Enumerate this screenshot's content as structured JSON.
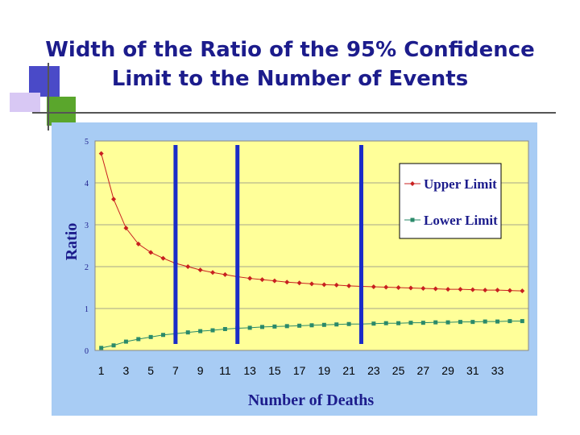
{
  "slide": {
    "title_line1": "Width of the Ratio of the 95% Confidence",
    "title_line2": "Limit to the Number of Events",
    "colors": {
      "title": "#1c1c8c",
      "deco_blue": "#4a4ac8",
      "deco_green": "#5aa62c",
      "deco_lavender": "#d6c6f2",
      "rule": "#555555"
    }
  },
  "chart_data": {
    "type": "line",
    "title": "",
    "xlabel": "Number of Deaths",
    "ylabel": "Ratio",
    "x": [
      1,
      2,
      3,
      4,
      5,
      6,
      7,
      8,
      9,
      10,
      11,
      12,
      13,
      14,
      15,
      16,
      17,
      18,
      19,
      20,
      21,
      22,
      23,
      24,
      25,
      26,
      27,
      28,
      29,
      30,
      31,
      32,
      33,
      34,
      35
    ],
    "x_tick_labels": [
      "1",
      "3",
      "5",
      "7",
      "9",
      "11",
      "13",
      "15",
      "17",
      "19",
      "21",
      "23",
      "25",
      "27",
      "29",
      "31",
      "33"
    ],
    "y_tick_labels": [
      "0",
      "1",
      "2",
      "3",
      "4",
      "5"
    ],
    "ylim": [
      0,
      5
    ],
    "series": [
      {
        "name": "Upper Limit",
        "color": "#c82020",
        "marker": "diamond",
        "values": [
          4.7,
          3.61,
          2.92,
          2.54,
          2.34,
          2.2,
          2.08,
          2.0,
          1.92,
          1.86,
          1.81,
          1.76,
          1.72,
          1.69,
          1.66,
          1.63,
          1.61,
          1.59,
          1.57,
          1.56,
          1.54,
          1.53,
          1.52,
          1.51,
          1.5,
          1.49,
          1.48,
          1.47,
          1.46,
          1.46,
          1.45,
          1.44,
          1.44,
          1.43,
          1.42
        ]
      },
      {
        "name": "Lower Limit",
        "color": "#2a8a6a",
        "marker": "square",
        "values": [
          0.06,
          0.12,
          0.21,
          0.27,
          0.32,
          0.37,
          0.4,
          0.43,
          0.46,
          0.48,
          0.51,
          0.53,
          0.54,
          0.56,
          0.57,
          0.58,
          0.59,
          0.6,
          0.61,
          0.62,
          0.63,
          0.63,
          0.64,
          0.65,
          0.65,
          0.66,
          0.66,
          0.67,
          0.67,
          0.68,
          0.68,
          0.69,
          0.69,
          0.7,
          0.7
        ]
      }
    ],
    "vertical_markers": [
      7,
      12,
      22
    ],
    "marker_color": "#1a2cc8",
    "grid": true,
    "legend_position": "top-right",
    "plot_background": "#ffff99",
    "frame_background": "#a8ccf4"
  }
}
